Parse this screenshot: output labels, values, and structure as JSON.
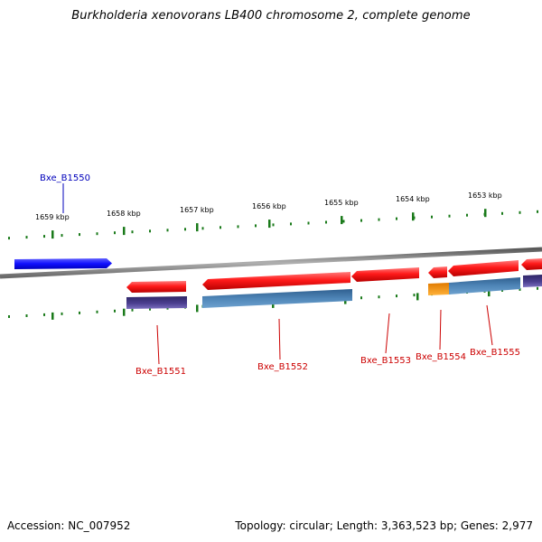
{
  "title": "Burkholderia xenovorans LB400 chromosome 2, complete genome",
  "ruler": {
    "ticks": [
      "1659 kbp",
      "1658 kbp",
      "1657 kbp",
      "1656 kbp",
      "1655 kbp",
      "1654 kbp",
      "1653 kbp"
    ]
  },
  "genes": {
    "forward": [
      "Bxe_B1550"
    ],
    "reverse": [
      "Bxe_B1551",
      "Bxe_B1552",
      "Bxe_B1553",
      "Bxe_B1554",
      "Bxe_B1555"
    ]
  },
  "footer": {
    "accession": "Accession: NC_007952",
    "summary": "Topology: circular; Length: 3,363,523 bp; Genes: 2,977"
  },
  "colors": {
    "forward_gene": "#1a1aff",
    "reverse_gene": "#ff1a1a",
    "rna_orange": "#ff9900",
    "track_blue": "#4f86b8",
    "track_purple": "#4b3f8f",
    "forward_label": "#0000bb",
    "reverse_label": "#cc0000",
    "tick": "#1a7a1a",
    "backbone": "#8a8a8a"
  }
}
